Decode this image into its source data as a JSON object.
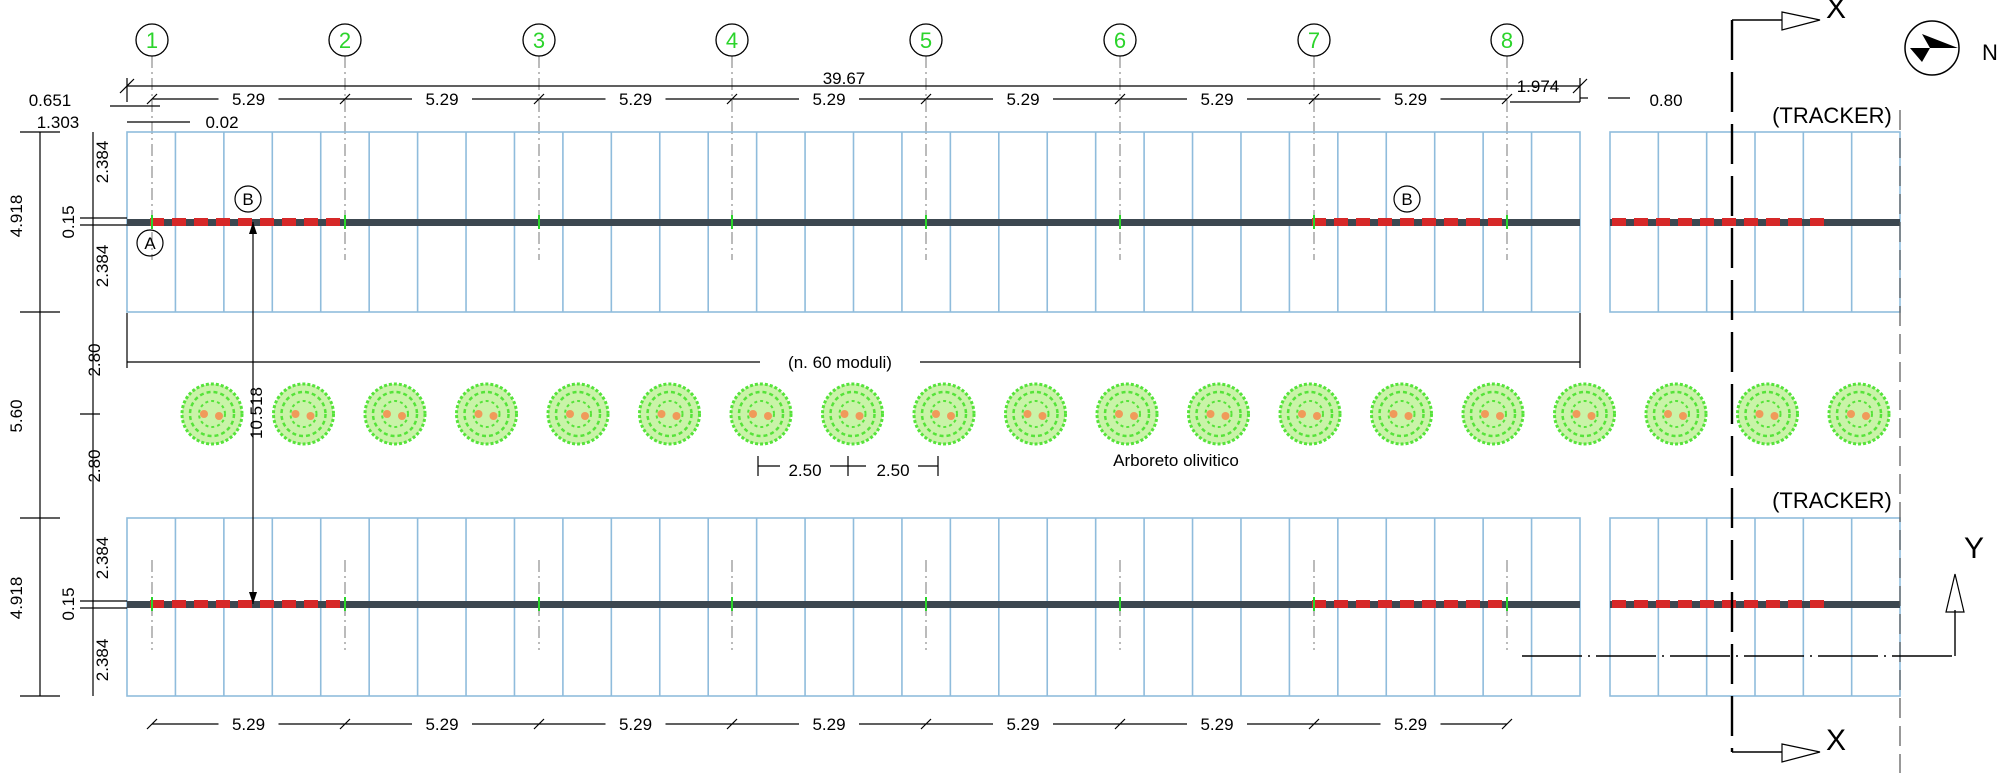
{
  "grid_axes": [
    "1",
    "2",
    "3",
    "4",
    "5",
    "6",
    "7",
    "8"
  ],
  "dimensions": {
    "total_length": "39.67",
    "bay": "5.29",
    "left_offset_top": "0.651",
    "left_offset_mid": "1.303",
    "left_small": "0.02",
    "right_end": "1.974",
    "gap": "0.80",
    "half_width": "2.384",
    "axis_gap": "0.15",
    "row_width": "4.918",
    "corridor_half": "2.80",
    "corridor": "5.60",
    "pitch": "10.518",
    "tree_spacing": "2.50"
  },
  "labels": {
    "modules": "(n. 60 moduli)",
    "olive_grove": "Arboreto olivitico",
    "tracker": "(TRACKER)",
    "section_x": "X",
    "section_y": "Y",
    "north": "N",
    "detail_a": "A",
    "detail_b": "B"
  },
  "colors": {
    "panel_outline": "#8fbcdc",
    "bubble": "#2bd42b",
    "foundation": "#d62828",
    "tree": "#56e33a",
    "tube": "#3c4750"
  }
}
